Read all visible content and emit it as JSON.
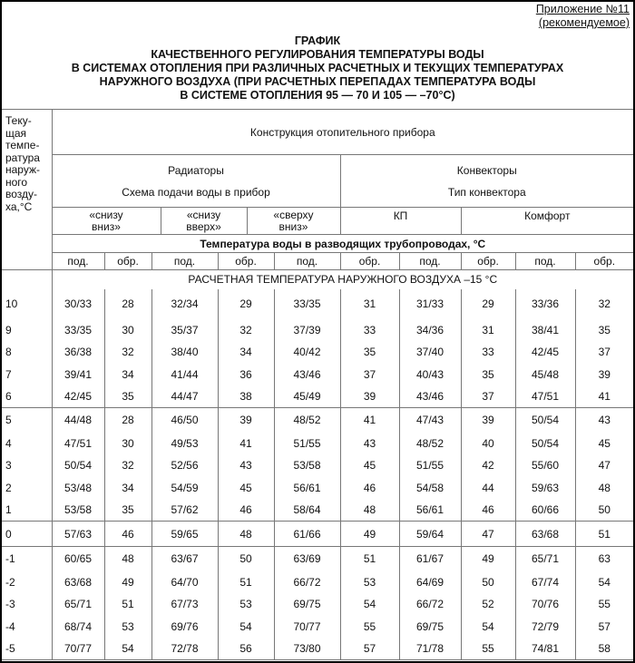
{
  "appendix": {
    "line1": "Приложение №11",
    "line2": "(рекомендуемое)"
  },
  "title": [
    "ГРАФИК",
    "КАЧЕСТВЕННОГО РЕГУЛИРОВАНИЯ ТЕМПЕРАТУРЫ ВОДЫ",
    "В СИСТЕМАХ ОТОПЛЕНИЯ ПРИ РАЗЛИЧНЫХ РАСЧЕТНЫХ И ТЕКУЩИХ ТЕМПЕРАТУРАХ",
    "НАРУЖНОГО ВОЗДУХА (ПРИ РАСЧЕТНЫХ ПЕРЕПАДАХ ТЕМПЕРАТУРА ВОДЫ",
    "В СИСТЕМЕ ОТОПЛЕНИЯ  95 — 70 И 105 — –70°С)"
  ],
  "header": {
    "current_temp": "Теку-щая темпе-ратура наруж-ного возду-ха,°С",
    "construction": "Конструкция отопительного прибора",
    "radiators": "Радиаторы",
    "radiators_sub": "Схема подачи воды в прибор",
    "convectors": "Конвекторы",
    "convectors_sub": "Тип конвектора",
    "schemes": [
      "«снизу вниз»",
      "«снизу вверх»",
      "«сверху вниз»"
    ],
    "convector_types": [
      "КП",
      "Комфорт"
    ],
    "pipe_temp": "Температура воды в разводящих трубопроводах, °С",
    "sub_cols": [
      "под.",
      "обр.",
      "под.",
      "обр.",
      "под.",
      "обр.",
      "под.",
      "обр.",
      "под.",
      "обр."
    ],
    "design_temp": "РАСЧЕТНАЯ ТЕМПЕРАТУРА НАРУЖНОГО ВОЗДУХА  –15 °С"
  },
  "groups": [
    [
      [
        "10",
        "30/33",
        "28",
        "32/34",
        "29",
        "33/35",
        "31",
        "31/33",
        "29",
        "33/36",
        "32"
      ],
      [
        "9",
        "33/35",
        "30",
        "35/37",
        "32",
        "37/39",
        "33",
        "34/36",
        "31",
        "38/41",
        "35"
      ],
      [
        "8",
        "36/38",
        "32",
        "38/40",
        "34",
        "40/42",
        "35",
        "37/40",
        "33",
        "42/45",
        "37"
      ],
      [
        "7",
        "39/41",
        "34",
        "41/44",
        "36",
        "43/46",
        "37",
        "40/43",
        "35",
        "45/48",
        "39"
      ],
      [
        "6",
        "42/45",
        "35",
        "44/47",
        "38",
        "45/49",
        "39",
        "43/46",
        "37",
        "47/51",
        "41"
      ]
    ],
    [
      [
        "5",
        "44/48",
        "28",
        "46/50",
        "39",
        "48/52",
        "41",
        "47/43",
        "39",
        "50/54",
        "43"
      ],
      [
        "4",
        "47/51",
        "30",
        "49/53",
        "41",
        "51/55",
        "43",
        "48/52",
        "40",
        "50/54",
        "45"
      ],
      [
        "3",
        "50/54",
        "32",
        "52/56",
        "43",
        "53/58",
        "45",
        "51/55",
        "42",
        "55/60",
        "47"
      ],
      [
        "2",
        "53/48",
        "34",
        "54/59",
        "45",
        "56/61",
        "46",
        "54/58",
        "44",
        "59/63",
        "48"
      ],
      [
        "1",
        "53/58",
        "35",
        "57/62",
        "46",
        "58/64",
        "48",
        "56/61",
        "46",
        "60/66",
        "50"
      ]
    ],
    [
      [
        "0",
        "57/63",
        "46",
        "59/65",
        "48",
        "61/66",
        "49",
        "59/64",
        "47",
        "63/68",
        "51"
      ]
    ],
    [
      [
        "-1",
        "60/65",
        "48",
        "63/67",
        "50",
        "63/69",
        "51",
        "61/67",
        "49",
        "65/71",
        "63"
      ],
      [
        "-2",
        "63/68",
        "49",
        "64/70",
        "51",
        "66/72",
        "53",
        "64/69",
        "50",
        "67/74",
        "54"
      ],
      [
        "-3",
        "65/71",
        "51",
        "67/73",
        "53",
        "69/75",
        "54",
        "66/72",
        "52",
        "70/76",
        "55"
      ],
      [
        "-4",
        "68/74",
        "53",
        "69/76",
        "54",
        "70/77",
        "55",
        "69/75",
        "54",
        "72/79",
        "57"
      ],
      [
        "-5",
        "70/77",
        "54",
        "72/78",
        "56",
        "73/80",
        "57",
        "71/78",
        "55",
        "74/81",
        "58"
      ]
    ]
  ]
}
